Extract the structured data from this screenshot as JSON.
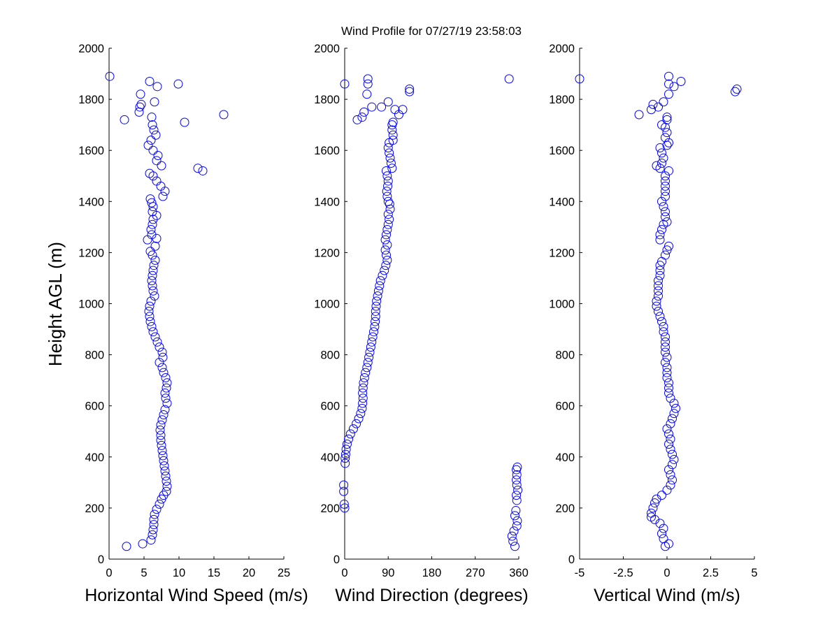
{
  "title": "Wind Profile for  07/27/19 23:58:03",
  "ylabel": "Height AGL (m)",
  "colors": {
    "marker": "#0000ff",
    "axis": "#000000",
    "background": "#ffffff"
  },
  "chart_data": [
    {
      "type": "scatter",
      "xlabel": "Horizontal Wind Speed (m/s)",
      "xlim": [
        0,
        25
      ],
      "ylim": [
        0,
        2000
      ],
      "xticks": [
        "0",
        "5",
        "10",
        "15",
        "20",
        "25"
      ],
      "xtick_values": [
        0,
        5,
        10,
        15,
        20,
        25
      ],
      "yticks": [
        "0",
        "200",
        "400",
        "600",
        "800",
        "1000",
        "1200",
        "1400",
        "1600",
        "1800",
        "2000"
      ],
      "yaxis_labels_shown": true,
      "grid": false,
      "marker": "open-circle",
      "points": [
        [
          2.5,
          50
        ],
        [
          4.8,
          60
        ],
        [
          6.0,
          75
        ],
        [
          6.2,
          95
        ],
        [
          6.3,
          115
        ],
        [
          6.4,
          135
        ],
        [
          6.4,
          155
        ],
        [
          6.5,
          175
        ],
        [
          6.8,
          195
        ],
        [
          7.2,
          215
        ],
        [
          7.5,
          235
        ],
        [
          7.8,
          250
        ],
        [
          8.2,
          265
        ],
        [
          8.3,
          285
        ],
        [
          8.2,
          305
        ],
        [
          8.1,
          325
        ],
        [
          8.0,
          345
        ],
        [
          7.9,
          365
        ],
        [
          7.8,
          385
        ],
        [
          7.7,
          405
        ],
        [
          7.6,
          425
        ],
        [
          7.5,
          445
        ],
        [
          7.4,
          465
        ],
        [
          7.4,
          485
        ],
        [
          7.3,
          505
        ],
        [
          7.4,
          525
        ],
        [
          7.6,
          545
        ],
        [
          7.8,
          565
        ],
        [
          8.0,
          585
        ],
        [
          8.3,
          610
        ],
        [
          8.1,
          630
        ],
        [
          8.0,
          650
        ],
        [
          8.2,
          670
        ],
        [
          8.3,
          690
        ],
        [
          8.1,
          710
        ],
        [
          7.8,
          730
        ],
        [
          7.6,
          750
        ],
        [
          7.2,
          770
        ],
        [
          7.7,
          790
        ],
        [
          7.6,
          810
        ],
        [
          7.2,
          830
        ],
        [
          6.9,
          850
        ],
        [
          6.6,
          870
        ],
        [
          6.3,
          890
        ],
        [
          6.1,
          910
        ],
        [
          5.9,
          930
        ],
        [
          5.8,
          950
        ],
        [
          5.7,
          970
        ],
        [
          5.8,
          990
        ],
        [
          6.0,
          1010
        ],
        [
          6.5,
          1030
        ],
        [
          6.3,
          1050
        ],
        [
          6.2,
          1070
        ],
        [
          6.1,
          1090
        ],
        [
          6.2,
          1110
        ],
        [
          6.3,
          1130
        ],
        [
          6.4,
          1150
        ],
        [
          6.6,
          1170
        ],
        [
          6.2,
          1190
        ],
        [
          5.9,
          1205
        ],
        [
          6.6,
          1225
        ],
        [
          6.8,
          1255
        ],
        [
          5.5,
          1250
        ],
        [
          6.1,
          1270
        ],
        [
          6.0,
          1290
        ],
        [
          6.2,
          1310
        ],
        [
          6.3,
          1330
        ],
        [
          6.8,
          1345
        ],
        [
          6.2,
          1360
        ],
        [
          6.3,
          1380
        ],
        [
          6.1,
          1395
        ],
        [
          5.9,
          1410
        ],
        [
          7.7,
          1420
        ],
        [
          8.0,
          1440
        ],
        [
          7.4,
          1460
        ],
        [
          6.8,
          1480
        ],
        [
          6.3,
          1500
        ],
        [
          5.8,
          1510
        ],
        [
          7.5,
          1540
        ],
        [
          6.8,
          1560
        ],
        [
          7.0,
          1580
        ],
        [
          6.3,
          1600
        ],
        [
          5.6,
          1620
        ],
        [
          6.0,
          1640
        ],
        [
          6.7,
          1660
        ],
        [
          6.4,
          1680
        ],
        [
          6.2,
          1700
        ],
        [
          6.1,
          1730
        ],
        [
          2.2,
          1720
        ],
        [
          10.8,
          1710
        ],
        [
          16.4,
          1740
        ],
        [
          4.3,
          1750
        ],
        [
          4.4,
          1770
        ],
        [
          4.6,
          1780
        ],
        [
          6.5,
          1790
        ],
        [
          4.5,
          1820
        ],
        [
          6.9,
          1850
        ],
        [
          9.9,
          1860
        ],
        [
          5.8,
          1870
        ],
        [
          0.1,
          1890
        ],
        [
          12.7,
          1530
        ],
        [
          13.4,
          1520
        ]
      ]
    },
    {
      "type": "scatter",
      "xlabel": "Wind Direction (degrees)",
      "xlim": [
        0,
        360
      ],
      "ylim": [
        0,
        2000
      ],
      "xticks": [
        "0",
        "90",
        "180",
        "270",
        "360"
      ],
      "xtick_values": [
        0,
        90,
        180,
        270,
        360
      ],
      "yticks": [
        "0",
        "200",
        "400",
        "600",
        "800",
        "1000",
        "1200",
        "1400",
        "1600",
        "1800",
        "2000"
      ],
      "yaxis_labels_shown": true,
      "grid": false,
      "marker": "open-circle",
      "points": [
        [
          0,
          200
        ],
        [
          -1,
          215
        ],
        [
          -2,
          265
        ],
        [
          -2,
          290
        ],
        [
          1,
          375
        ],
        [
          1,
          395
        ],
        [
          2,
          410
        ],
        [
          3,
          430
        ],
        [
          5,
          450
        ],
        [
          8,
          470
        ],
        [
          12,
          490
        ],
        [
          18,
          510
        ],
        [
          24,
          530
        ],
        [
          29,
          550
        ],
        [
          33,
          570
        ],
        [
          36,
          590
        ],
        [
          37,
          610
        ],
        [
          38,
          630
        ],
        [
          37,
          650
        ],
        [
          38,
          670
        ],
        [
          39,
          690
        ],
        [
          41,
          710
        ],
        [
          43,
          730
        ],
        [
          46,
          750
        ],
        [
          48,
          770
        ],
        [
          50,
          790
        ],
        [
          52,
          810
        ],
        [
          54,
          830
        ],
        [
          56,
          850
        ],
        [
          58,
          870
        ],
        [
          60,
          890
        ],
        [
          62,
          910
        ],
        [
          63,
          930
        ],
        [
          64,
          950
        ],
        [
          64,
          970
        ],
        [
          65,
          990
        ],
        [
          66,
          1010
        ],
        [
          68,
          1030
        ],
        [
          70,
          1050
        ],
        [
          72,
          1070
        ],
        [
          74,
          1090
        ],
        [
          78,
          1110
        ],
        [
          82,
          1130
        ],
        [
          85,
          1150
        ],
        [
          88,
          1170
        ],
        [
          86,
          1190
        ],
        [
          84,
          1210
        ],
        [
          88,
          1230
        ],
        [
          84,
          1250
        ],
        [
          86,
          1270
        ],
        [
          88,
          1290
        ],
        [
          90,
          1310
        ],
        [
          92,
          1330
        ],
        [
          90,
          1350
        ],
        [
          94,
          1370
        ],
        [
          93,
          1390
        ],
        [
          90,
          1400
        ],
        [
          88,
          1420
        ],
        [
          87,
          1440
        ],
        [
          89,
          1460
        ],
        [
          90,
          1480
        ],
        [
          88,
          1500
        ],
        [
          86,
          1520
        ],
        [
          98,
          1530
        ],
        [
          96,
          1550
        ],
        [
          94,
          1570
        ],
        [
          92,
          1590
        ],
        [
          90,
          1610
        ],
        [
          92,
          1630
        ],
        [
          100,
          1640
        ],
        [
          100,
          1660
        ],
        [
          98,
          1680
        ],
        [
          98,
          1700
        ],
        [
          100,
          1710
        ],
        [
          26,
          1720
        ],
        [
          36,
          1730
        ],
        [
          40,
          1750
        ],
        [
          56,
          1770
        ],
        [
          76,
          1770
        ],
        [
          90,
          1790
        ],
        [
          112,
          1740
        ],
        [
          104,
          1760
        ],
        [
          120,
          1760
        ],
        [
          46,
          1820
        ],
        [
          48,
          1860
        ],
        [
          48,
          1880
        ],
        [
          0,
          1860
        ],
        [
          134,
          1830
        ],
        [
          134,
          1840
        ],
        [
          340,
          1880
        ],
        [
          352,
          50
        ],
        [
          348,
          70
        ],
        [
          346,
          90
        ],
        [
          350,
          110
        ],
        [
          356,
          130
        ],
        [
          357,
          150
        ],
        [
          352,
          170
        ],
        [
          354,
          190
        ],
        [
          356,
          230
        ],
        [
          355,
          250
        ],
        [
          358,
          270
        ],
        [
          356,
          290
        ],
        [
          355,
          310
        ],
        [
          356,
          330
        ],
        [
          355,
          350
        ],
        [
          357,
          360
        ]
      ]
    },
    {
      "type": "scatter",
      "xlabel": "Vertical Wind (m/s)",
      "xlim": [
        -5,
        5
      ],
      "ylim": [
        0,
        2000
      ],
      "xticks": [
        "-5",
        "-2.5",
        "0",
        "2.5",
        "5"
      ],
      "xtick_values": [
        -5,
        -2.5,
        0,
        2.5,
        5
      ],
      "yticks": [
        "0",
        "200",
        "400",
        "600",
        "800",
        "1000",
        "1200",
        "1400",
        "1600",
        "1800",
        "2000"
      ],
      "yaxis_labels_shown": true,
      "grid": false,
      "marker": "open-circle",
      "points": [
        [
          -0.1,
          50
        ],
        [
          0.1,
          60
        ],
        [
          -0.2,
          80
        ],
        [
          -0.3,
          100
        ],
        [
          -0.2,
          120
        ],
        [
          -0.4,
          140
        ],
        [
          -0.7,
          155
        ],
        [
          -0.9,
          165
        ],
        [
          -0.9,
          180
        ],
        [
          -0.8,
          200
        ],
        [
          -0.7,
          220
        ],
        [
          -0.6,
          235
        ],
        [
          -0.3,
          250
        ],
        [
          0.0,
          270
        ],
        [
          0.2,
          290
        ],
        [
          0.3,
          310
        ],
        [
          0.2,
          330
        ],
        [
          0.1,
          350
        ],
        [
          0.3,
          370
        ],
        [
          0.4,
          390
        ],
        [
          0.3,
          410
        ],
        [
          0.2,
          430
        ],
        [
          0.1,
          450
        ],
        [
          0.2,
          470
        ],
        [
          0.1,
          490
        ],
        [
          0.0,
          510
        ],
        [
          0.2,
          530
        ],
        [
          0.3,
          550
        ],
        [
          0.4,
          570
        ],
        [
          0.5,
          590
        ],
        [
          0.4,
          610
        ],
        [
          0.2,
          630
        ],
        [
          0.1,
          650
        ],
        [
          0.1,
          670
        ],
        [
          0.1,
          690
        ],
        [
          0.0,
          710
        ],
        [
          0.0,
          730
        ],
        [
          0.0,
          750
        ],
        [
          -0.1,
          770
        ],
        [
          0.0,
          790
        ],
        [
          -0.1,
          810
        ],
        [
          -0.1,
          830
        ],
        [
          -0.1,
          850
        ],
        [
          -0.1,
          870
        ],
        [
          -0.2,
          890
        ],
        [
          -0.2,
          910
        ],
        [
          -0.3,
          930
        ],
        [
          -0.4,
          950
        ],
        [
          -0.5,
          970
        ],
        [
          -0.6,
          990
        ],
        [
          -0.6,
          1010
        ],
        [
          -0.5,
          1030
        ],
        [
          -0.5,
          1050
        ],
        [
          -0.5,
          1070
        ],
        [
          -0.5,
          1090
        ],
        [
          -0.4,
          1110
        ],
        [
          -0.4,
          1130
        ],
        [
          -0.4,
          1150
        ],
        [
          -0.3,
          1165
        ],
        [
          -0.1,
          1190
        ],
        [
          0.0,
          1210
        ],
        [
          0.1,
          1225
        ],
        [
          -0.4,
          1250
        ],
        [
          -0.4,
          1270
        ],
        [
          -0.3,
          1290
        ],
        [
          -0.2,
          1310
        ],
        [
          0.0,
          1320
        ],
        [
          -0.1,
          1340
        ],
        [
          -0.1,
          1360
        ],
        [
          -0.2,
          1380
        ],
        [
          -0.3,
          1400
        ],
        [
          -0.1,
          1420
        ],
        [
          -0.1,
          1440
        ],
        [
          -0.1,
          1460
        ],
        [
          -0.1,
          1480
        ],
        [
          -0.1,
          1500
        ],
        [
          0.1,
          1520
        ],
        [
          -0.4,
          1530
        ],
        [
          -0.6,
          1540
        ],
        [
          -0.3,
          1550
        ],
        [
          -0.2,
          1570
        ],
        [
          -0.3,
          1590
        ],
        [
          -0.4,
          1610
        ],
        [
          0.0,
          1620
        ],
        [
          0.1,
          1630
        ],
        [
          -0.1,
          1650
        ],
        [
          0.0,
          1670
        ],
        [
          -0.1,
          1690
        ],
        [
          -0.3,
          1700
        ],
        [
          0.0,
          1720
        ],
        [
          0.0,
          1730
        ],
        [
          -1.6,
          1740
        ],
        [
          -0.9,
          1760
        ],
        [
          -0.8,
          1780
        ],
        [
          -0.5,
          1770
        ],
        [
          -0.2,
          1790
        ],
        [
          0.1,
          1820
        ],
        [
          0.1,
          1860
        ],
        [
          0.4,
          1850
        ],
        [
          0.8,
          1870
        ],
        [
          0.1,
          1890
        ],
        [
          -5.0,
          1880
        ],
        [
          3.9,
          1830
        ],
        [
          4.0,
          1840
        ]
      ]
    }
  ]
}
